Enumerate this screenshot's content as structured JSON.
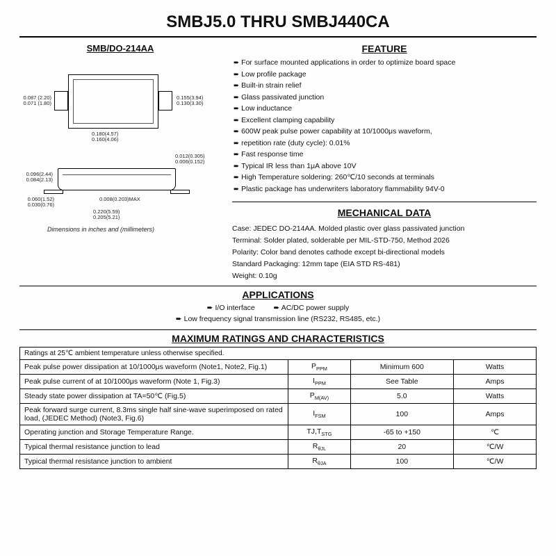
{
  "title": "SMBJ5.0 THRU SMBJ440CA",
  "diagram": {
    "title": "SMB/DO-214AA",
    "caption": "Dimensions in inches and (millimeters)",
    "dims": {
      "left_h": "0.087 (2.20)\n0.071 (1.80)",
      "right_h": "0.155(3.94)\n0.130(3.30)",
      "top_w": "0.180(4.57)\n0.160(4.06)",
      "side_tr": "0.012(0.305)\n0.006(0.152)",
      "side_h": "0.096(2.44)\n0.084(2.13)",
      "foot": "0.060(1.52)\n0.030(0.76)",
      "thk": "0.008(0.203)MAX",
      "full_w": "0.220(5.59)\n0.205(5.21)"
    }
  },
  "features": {
    "heading": "FEATURE",
    "items": [
      "For surface mounted applications in order to optimize board space",
      "Low profile package",
      "Built-in strain relief",
      "Glass passivated junction",
      "Low inductance",
      "Excellent clamping capability",
      "600W peak pulse power capability at 10/1000μs waveform,",
      "repetition rate (duty cycle): 0.01%",
      "Fast response time",
      "Typical IR less than 1μA above 10V",
      "High Temperature soldering: 260℃/10 seconds at terminals",
      "Plastic package has underwriters laboratory flammability 94V-0"
    ]
  },
  "mechanical": {
    "heading": "MECHANICAL DATA",
    "lines": [
      "Case: JEDEC DO-214AA. Molded plastic over glass passivated junction",
      "Terminal: Solder plated, solderable per MIL-STD-750, Method 2026",
      "Polarity: Color band denotes cathode except bi-directional models",
      "Standard Packaging: 12mm tape (EIA STD RS-481)",
      "Weight: 0.10g"
    ]
  },
  "applications": {
    "heading": "APPLICATIONS",
    "row1a": "I/O interface",
    "row1b": "AC/DC power supply",
    "row2": "Low frequency signal transmission line (RS232, RS485, etc.)"
  },
  "ratings": {
    "heading": "MAXIMUM RATINGS AND CHARACTERISTICS",
    "note": "Ratings at 25℃ ambient temperature unless otherwise specified.",
    "rows": [
      {
        "param": "Peak pulse power dissipation at 10/1000μs waveform (Note1, Note2, Fig.1)",
        "sym": "P",
        "sub": "PPM",
        "val": "Minimum 600",
        "unit": "Watts"
      },
      {
        "param": "Peak pulse current of at 10/1000μs waveform (Note 1, Fig.3)",
        "sym": "I",
        "sub": "PPM",
        "val": "See Table",
        "unit": "Amps"
      },
      {
        "param": "Steady state power dissipation at TA=50℃ (Fig.5)",
        "sym": "P",
        "sub": "M(AV)",
        "val": "5.0",
        "unit": "Watts"
      },
      {
        "param": "Peak forward surge current, 8.3ms single half sine-wave superimposed on rated load, (JEDEC Method) (Note3, Fig.6)",
        "sym": "I",
        "sub": "FSM",
        "val": "100",
        "unit": "Amps"
      },
      {
        "param": "Operating junction and Storage Temperature Range.",
        "sym": "TJ,T",
        "sub": "STG",
        "val": "-65 to +150",
        "unit": "℃"
      },
      {
        "param": "Typical thermal resistance junction to lead",
        "sym": "R",
        "sub": "θJL",
        "val": "20",
        "unit": "℃/W"
      },
      {
        "param": "Typical thermal resistance junction to ambient",
        "sym": "R",
        "sub": "θJA",
        "val": "100",
        "unit": "℃/W"
      }
    ]
  }
}
